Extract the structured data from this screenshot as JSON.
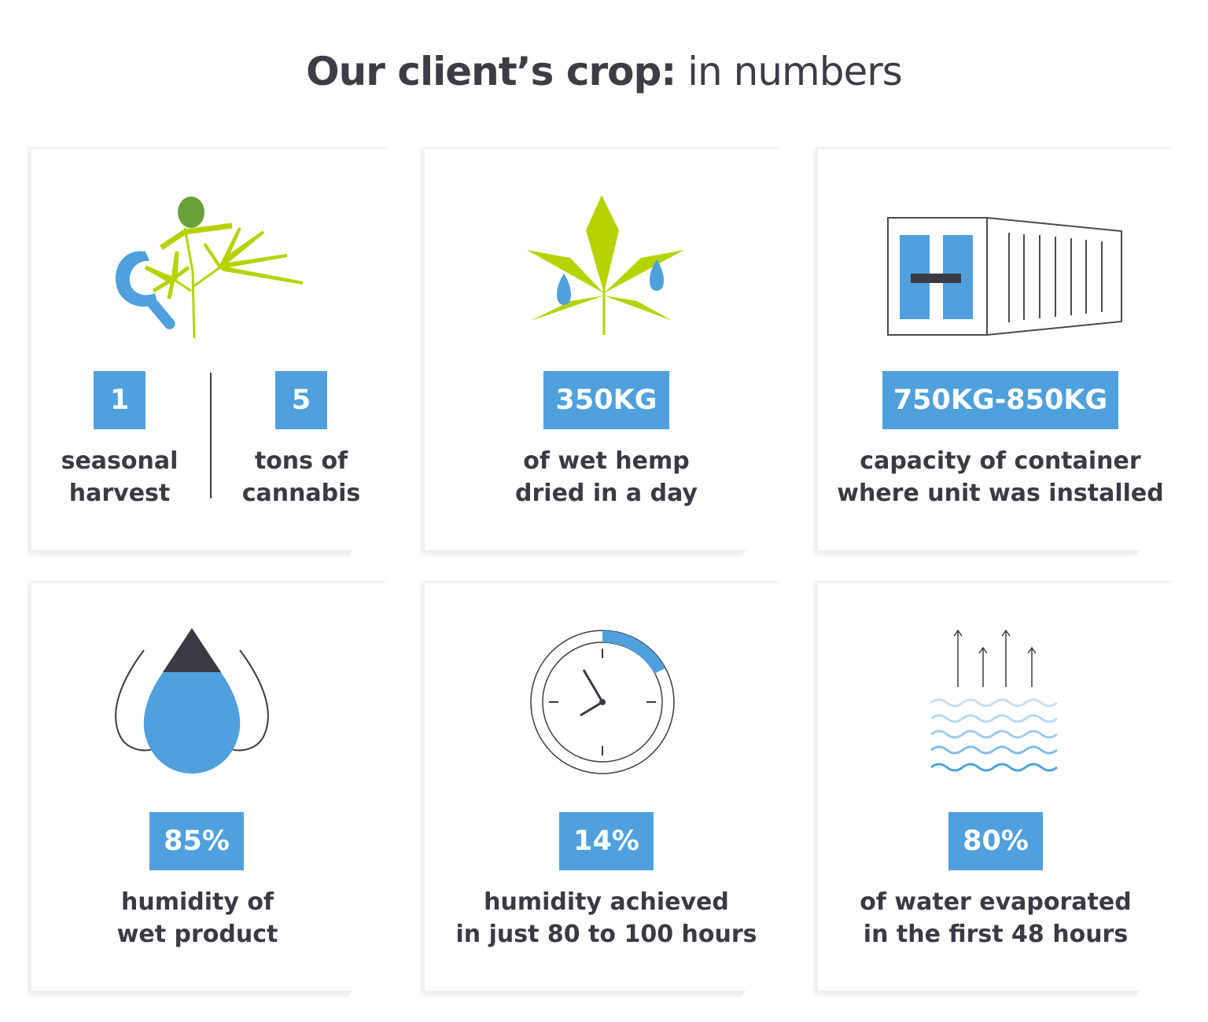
{
  "title": {
    "bold": "Our client’s crop:",
    "light": " in numbers"
  },
  "colors": {
    "accent": "#4fa0dc",
    "text": "#3a3a42",
    "leaf": "#b5d300",
    "bud": "#6aa23a"
  },
  "cards": [
    {
      "icon": "sickle-cannabis-plant-icon",
      "stats": [
        {
          "value": "1",
          "line1": "seasonal",
          "line2": "harvest"
        },
        {
          "value": "5",
          "line1": "tons of",
          "line2": "cannabis"
        }
      ]
    },
    {
      "icon": "wet-cannabis-leaf-icon",
      "value": "350KG",
      "line1": "of wet hemp",
      "line2": "dried in a day"
    },
    {
      "icon": "shipping-container-icon",
      "value": "750KG-850KG",
      "line1": "capacity of container",
      "line2": "where unit was installed"
    },
    {
      "icon": "water-drops-icon",
      "value": "85%",
      "line1": "humidity of",
      "line2": "wet product"
    },
    {
      "icon": "clock-icon",
      "value": "14%",
      "line1": "humidity achieved",
      "line2": "in just 80 to 100 hours"
    },
    {
      "icon": "evaporation-waves-icon",
      "value": "80%",
      "line1": "of water evaporated",
      "line2": "in the first 48 hours"
    }
  ]
}
